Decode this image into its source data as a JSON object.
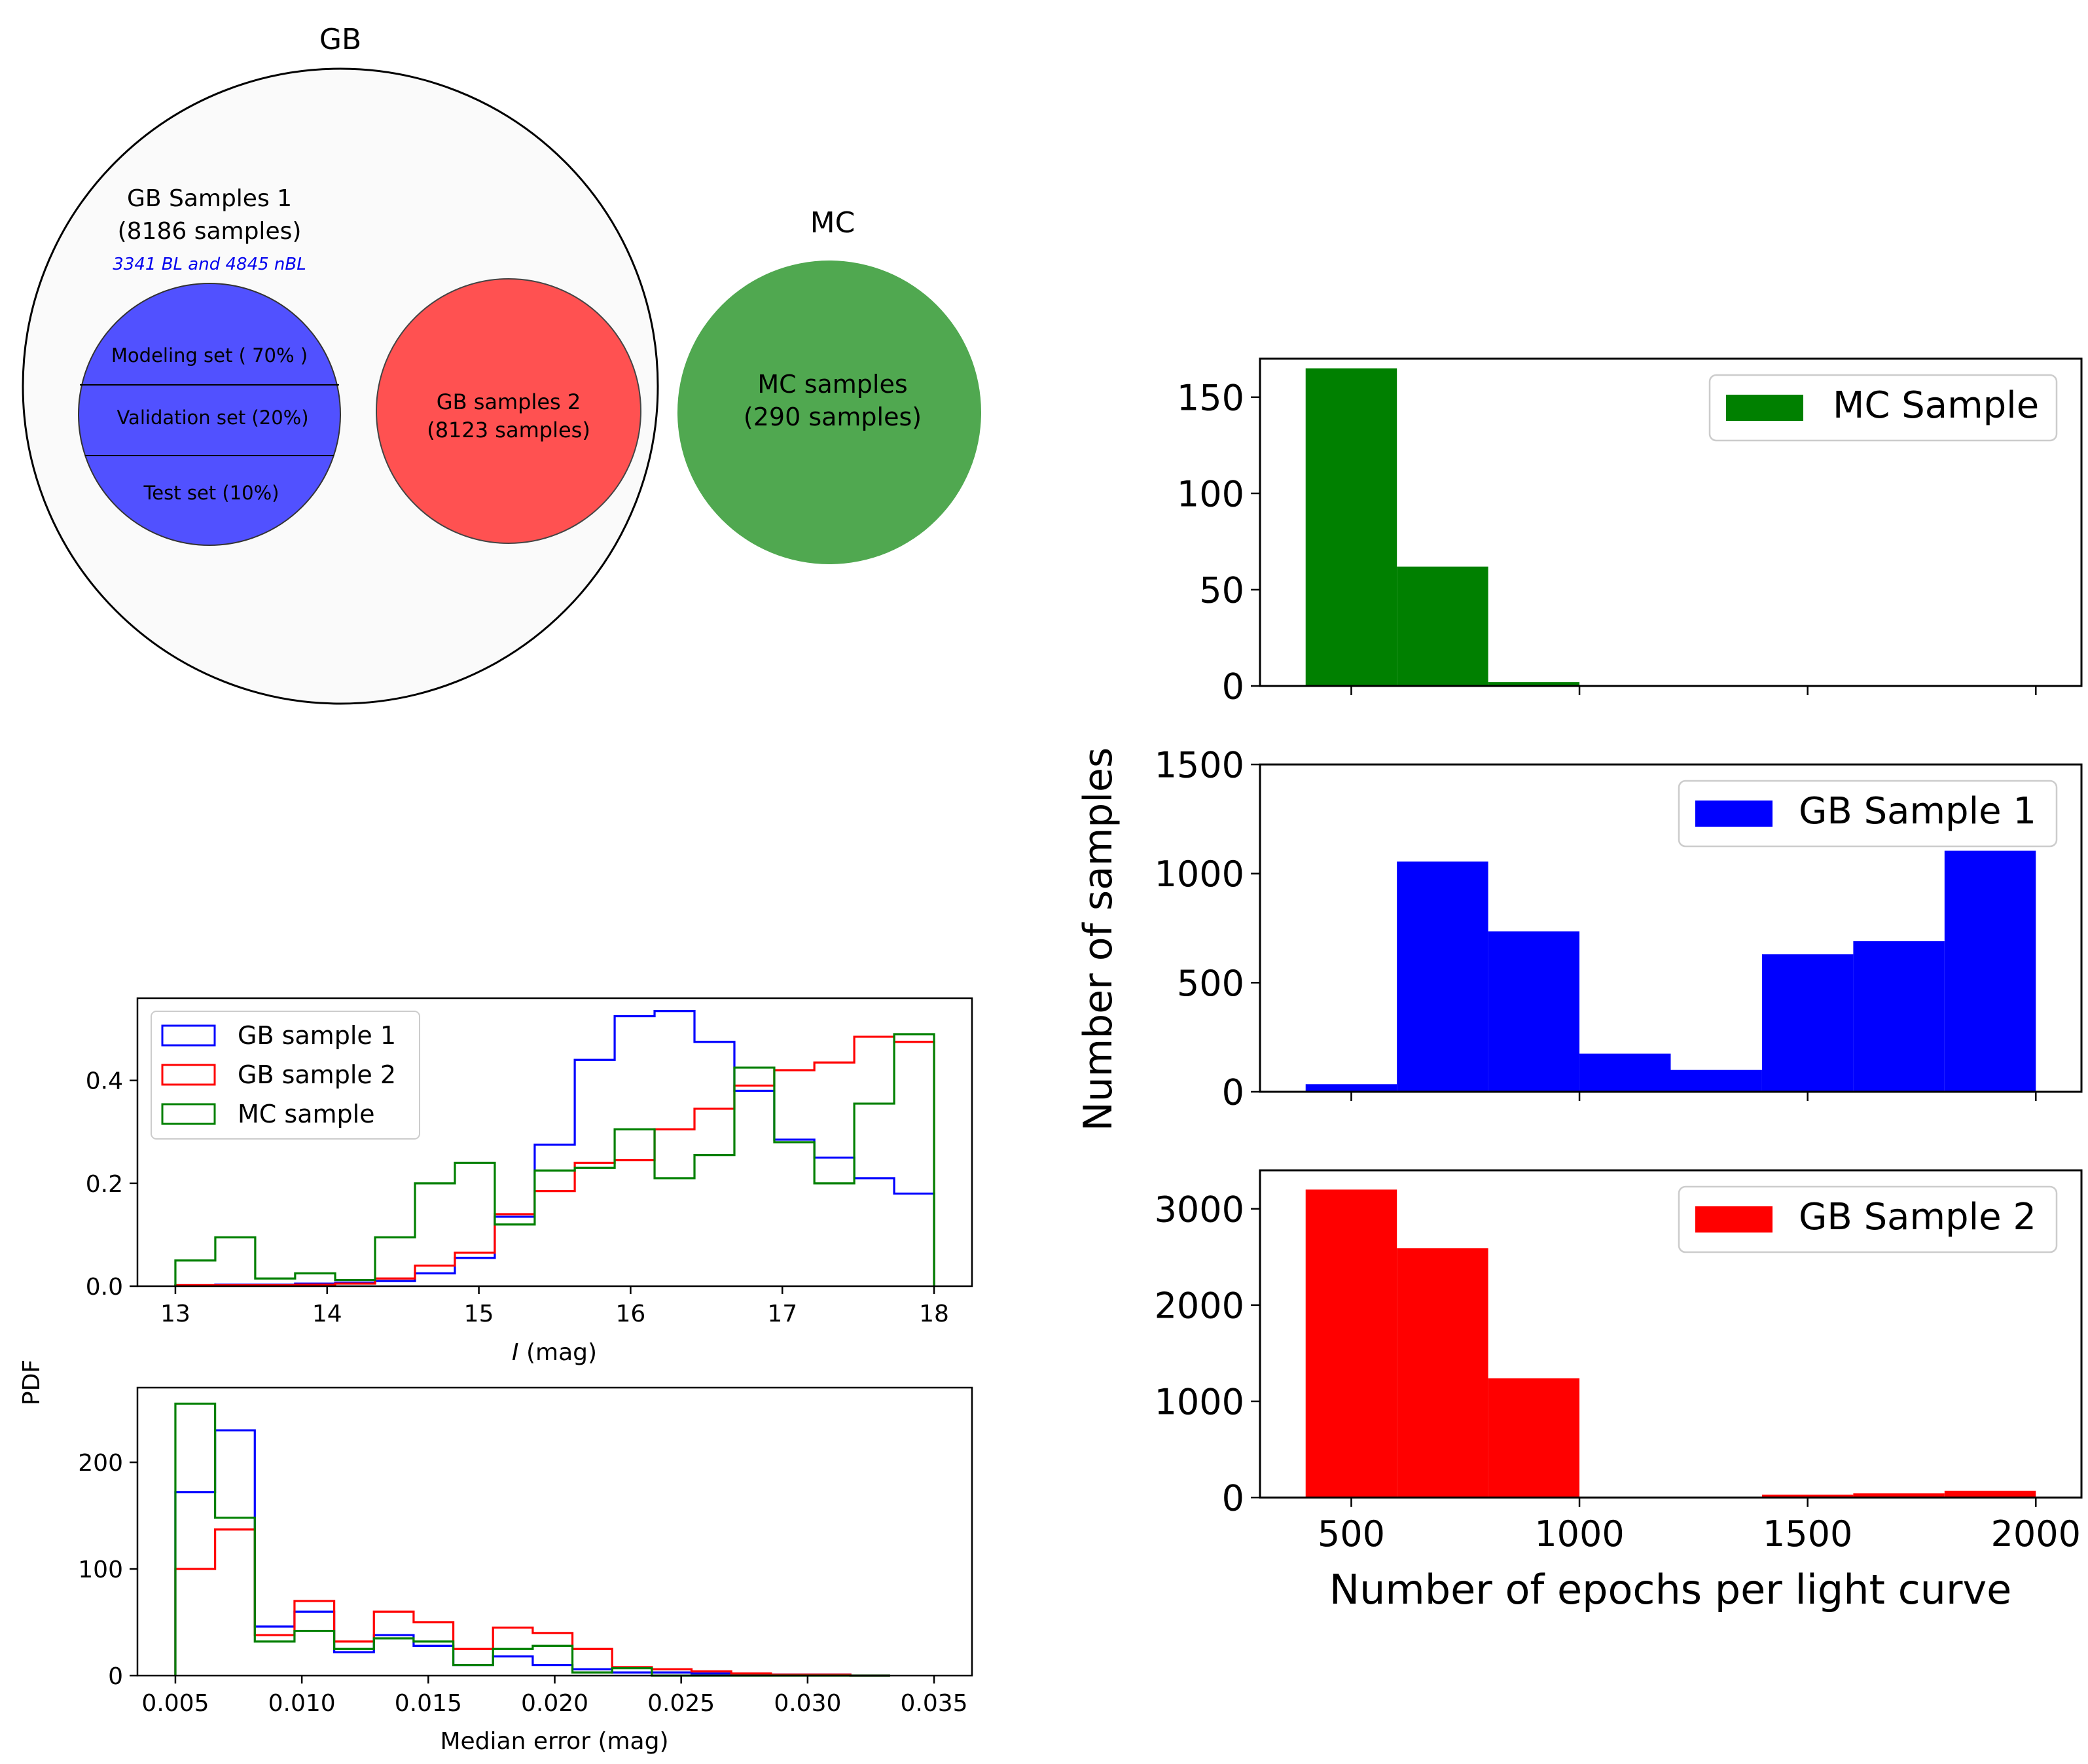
{
  "diagram": {
    "gb_title": "GB",
    "mc_title": "MC",
    "gb1_label_line1": "GB Samples 1",
    "gb1_label_line2": "(8186 samples)",
    "gb1_sublabel": "3341 BL and 4845 nBL",
    "modeling_set": "Modeling set ( 70% )",
    "validation_set": "Validation set (20%)",
    "test_set": "Test set (10%)",
    "gb2_label_line1": "GB samples 2",
    "gb2_label_line2": "(8123 samples)",
    "mc_label_line1": "MC samples",
    "mc_label_line2": "(290 samples)",
    "colors": {
      "gb1": "#5151ff",
      "gb2": "#ff5151",
      "mc": "#50a850",
      "gb_fill": "#fafafa"
    }
  },
  "chart_data": [
    {
      "id": "mag",
      "type": "step-histogram",
      "xlabel_italic": "I",
      "xlabel_rest": " (mag)",
      "ylabel": "PDF",
      "xlim": [
        12.75,
        18.25
      ],
      "ylim": [
        0,
        0.56
      ],
      "xticks": [
        13,
        14,
        15,
        16,
        17,
        18
      ],
      "xtick_labels": [
        "13",
        "14",
        "15",
        "16",
        "17",
        "18"
      ],
      "yticks": [
        0.0,
        0.2,
        0.4
      ],
      "ytick_labels": [
        "0.0",
        "0.2",
        "0.4"
      ],
      "legend": {
        "position": "upper-left",
        "entries": [
          "GB sample 1",
          "GB sample 2",
          "MC sample"
        ]
      },
      "bin_edges": [
        13.0,
        13.263,
        13.526,
        13.789,
        14.053,
        14.316,
        14.579,
        14.842,
        15.105,
        15.368,
        15.632,
        15.895,
        16.158,
        16.421,
        16.684,
        16.947,
        17.211,
        17.474,
        17.737,
        18.0
      ],
      "series": [
        {
          "name": "GB sample 1",
          "color": "#0000ff",
          "values": [
            0.002,
            0.003,
            0.003,
            0.005,
            0.007,
            0.01,
            0.025,
            0.055,
            0.135,
            0.275,
            0.44,
            0.525,
            0.535,
            0.475,
            0.38,
            0.285,
            0.25,
            0.21,
            0.18
          ]
        },
        {
          "name": "GB sample 2",
          "color": "#ff0000",
          "values": [
            0.002,
            0.002,
            0.002,
            0.003,
            0.005,
            0.015,
            0.04,
            0.065,
            0.14,
            0.185,
            0.24,
            0.245,
            0.305,
            0.345,
            0.39,
            0.42,
            0.435,
            0.485,
            0.475
          ]
        },
        {
          "name": "MC sample",
          "color": "#008000",
          "values": [
            0.05,
            0.095,
            0.015,
            0.025,
            0.012,
            0.095,
            0.2,
            0.24,
            0.12,
            0.225,
            0.23,
            0.305,
            0.21,
            0.255,
            0.425,
            0.28,
            0.2,
            0.355,
            0.49
          ]
        }
      ]
    },
    {
      "id": "err",
      "type": "step-histogram",
      "xlabel": "Median error (mag)",
      "xlim": [
        0.0035,
        0.0365
      ],
      "ylim": [
        0,
        270
      ],
      "xticks": [
        0.005,
        0.01,
        0.015,
        0.02,
        0.025,
        0.03,
        0.035
      ],
      "xtick_labels": [
        "0.005",
        "0.010",
        "0.015",
        "0.020",
        "0.025",
        "0.030",
        "0.035"
      ],
      "yticks": [
        0,
        100,
        200
      ],
      "ytick_labels": [
        "0",
        "100",
        "200"
      ],
      "bin_edges": [
        0.005,
        0.00657,
        0.00814,
        0.00971,
        0.01128,
        0.01285,
        0.01442,
        0.01599,
        0.01756,
        0.01913,
        0.0207,
        0.02227,
        0.02384,
        0.02541,
        0.02698,
        0.02855,
        0.03012,
        0.03169,
        0.03326
      ],
      "series": [
        {
          "name": "GB sample 1",
          "color": "#0000ff",
          "values": [
            172,
            230,
            46,
            60,
            22,
            38,
            28,
            10,
            18,
            10,
            6,
            3,
            3,
            2,
            1,
            1,
            1,
            0
          ]
        },
        {
          "name": "GB sample 2",
          "color": "#ff0000",
          "values": [
            100,
            137,
            38,
            70,
            32,
            60,
            50,
            25,
            45,
            40,
            25,
            8,
            6,
            4,
            2,
            1,
            1,
            0
          ]
        },
        {
          "name": "MC sample",
          "color": "#008000",
          "values": [
            255,
            148,
            32,
            42,
            25,
            35,
            32,
            10,
            25,
            28,
            3,
            7,
            0,
            0,
            0,
            0,
            0,
            0
          ]
        }
      ]
    },
    {
      "id": "mc_epochs",
      "type": "bar-histogram",
      "xlim": [
        300,
        2100
      ],
      "ylim": [
        0,
        170
      ],
      "yticks": [
        0,
        50,
        100,
        150
      ],
      "ytick_labels": [
        "0",
        "50",
        "100",
        "150"
      ],
      "xticks": [
        500,
        1000,
        1500,
        2000
      ],
      "show_xtick_labels": false,
      "legend": {
        "position": "upper-right",
        "label": "MC Sample"
      },
      "bin_edges": [
        400,
        600,
        800,
        1000
      ],
      "values": [
        165,
        62,
        2
      ],
      "color": "#008000"
    },
    {
      "id": "gb1_epochs",
      "type": "bar-histogram",
      "xlim": [
        300,
        2100
      ],
      "ylim": [
        0,
        1500
      ],
      "yticks": [
        0,
        500,
        1000,
        1500
      ],
      "ytick_labels": [
        "0",
        "500",
        "1000",
        "1500"
      ],
      "xticks": [
        500,
        1000,
        1500,
        2000
      ],
      "show_xtick_labels": false,
      "legend": {
        "position": "upper-right",
        "label": "GB Sample 1"
      },
      "bin_edges": [
        400,
        600,
        800,
        1000,
        1200,
        1400,
        1600,
        1800,
        2000
      ],
      "values": [
        35,
        1055,
        735,
        175,
        100,
        630,
        690,
        1105
      ],
      "color": "#0000ff"
    },
    {
      "id": "gb2_epochs",
      "type": "bar-histogram",
      "xlim": [
        300,
        2100
      ],
      "ylim": [
        0,
        3400
      ],
      "yticks": [
        0,
        1000,
        2000,
        3000
      ],
      "ytick_labels": [
        "0",
        "1000",
        "2000",
        "3000"
      ],
      "xticks": [
        500,
        1000,
        1500,
        2000
      ],
      "xtick_labels": [
        "500",
        "1000",
        "1500",
        "2000"
      ],
      "show_xtick_labels": true,
      "legend": {
        "position": "upper-right",
        "label": "GB Sample 2"
      },
      "bin_edges": [
        400,
        600,
        800,
        1000,
        1200,
        1400,
        1600,
        1800,
        2000
      ],
      "values": [
        3200,
        2590,
        1240,
        0,
        0,
        30,
        45,
        70
      ],
      "color": "#ff0000"
    }
  ],
  "shared_labels": {
    "right_ylabel": "Number of samples",
    "right_xlabel": "Number of epochs per light curve"
  }
}
